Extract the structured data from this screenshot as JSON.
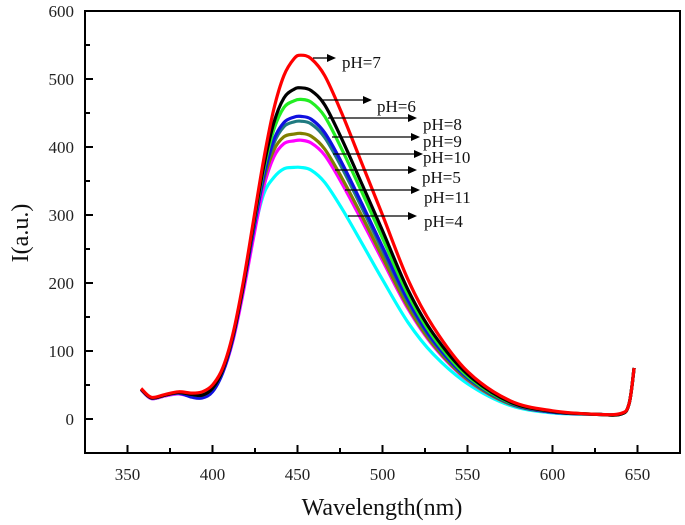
{
  "chart_data": {
    "type": "line",
    "title": "",
    "xlabel": "Wavelength(nm)",
    "ylabel": "I(a.u.)",
    "xlim": [
      325,
      675
    ],
    "ylim": [
      -50,
      600
    ],
    "xticks": [
      350,
      400,
      450,
      500,
      550,
      600,
      650
    ],
    "yticks": [
      0,
      100,
      200,
      300,
      400,
      500,
      600
    ],
    "grid": false,
    "x": [
      358,
      364,
      372,
      380,
      388,
      394,
      400,
      406,
      412,
      418,
      424,
      430,
      436,
      442,
      448,
      452,
      458,
      466,
      476,
      488,
      500,
      515,
      530,
      550,
      575,
      600,
      625,
      640,
      645,
      648
    ],
    "series": [
      {
        "name": "pH=7",
        "color": "#ff0000",
        "values": [
          45,
          32,
          36,
          40,
          38,
          40,
          50,
          75,
          125,
          200,
          290,
          380,
          455,
          505,
          530,
          535,
          530,
          505,
          450,
          375,
          300,
          205,
          135,
          70,
          27,
          12,
          7,
          8,
          22,
          75
        ]
      },
      {
        "name": "pH=6",
        "color": "#000000",
        "values": [
          44,
          31,
          35,
          39,
          36,
          35,
          45,
          72,
          122,
          195,
          285,
          370,
          435,
          472,
          485,
          487,
          483,
          462,
          412,
          345,
          277,
          190,
          125,
          66,
          25,
          11,
          7,
          7,
          22,
          75
        ]
      },
      {
        "name": "pH=8",
        "color": "#22ee22",
        "values": [
          44,
          31,
          35,
          39,
          36,
          35,
          45,
          72,
          122,
          195,
          283,
          365,
          425,
          458,
          468,
          470,
          466,
          445,
          397,
          333,
          266,
          183,
          120,
          63,
          24,
          11,
          7,
          7,
          22,
          75
        ]
      },
      {
        "name": "pH=9",
        "color": "#1010e0",
        "values": [
          44,
          31,
          35,
          38,
          32,
          31,
          40,
          68,
          118,
          192,
          275,
          355,
          410,
          436,
          444,
          445,
          441,
          421,
          377,
          316,
          253,
          175,
          115,
          61,
          23,
          10,
          7,
          7,
          22,
          75
        ]
      },
      {
        "name": "pH=10",
        "color": "#1f7a80",
        "values": [
          44,
          31,
          35,
          39,
          36,
          35,
          45,
          72,
          122,
          195,
          278,
          355,
          405,
          430,
          437,
          438,
          434,
          414,
          370,
          310,
          248,
          172,
          113,
          60,
          23,
          10,
          7,
          7,
          22,
          75
        ]
      },
      {
        "name": "pH=5",
        "color": "#808000",
        "values": [
          44,
          31,
          35,
          39,
          36,
          35,
          45,
          72,
          122,
          195,
          280,
          350,
          395,
          415,
          419,
          420,
          416,
          397,
          355,
          298,
          238,
          165,
          109,
          58,
          22,
          10,
          7,
          7,
          22,
          75
        ]
      },
      {
        "name": "pH=11",
        "color": "#ff00ff",
        "values": [
          43,
          30,
          34,
          37,
          33,
          33,
          43,
          68,
          115,
          185,
          265,
          340,
          385,
          405,
          409,
          410,
          406,
          388,
          347,
          291,
          233,
          162,
          107,
          57,
          22,
          10,
          7,
          7,
          22,
          75
        ]
      },
      {
        "name": "pH=4",
        "color": "#00ffff",
        "values": [
          43,
          30,
          34,
          37,
          34,
          34,
          44,
          70,
          118,
          188,
          270,
          330,
          355,
          368,
          370,
          370,
          366,
          348,
          310,
          258,
          205,
          142,
          95,
          52,
          20,
          9,
          7,
          7,
          22,
          75
        ]
      }
    ],
    "annotations": [
      "pH=7",
      "pH=6",
      "pH=8",
      "pH=9",
      "pH=10",
      "pH=5",
      "pH=11",
      "pH=4"
    ]
  }
}
